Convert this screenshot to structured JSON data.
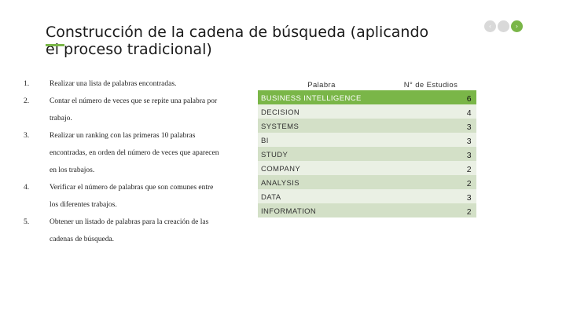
{
  "slide": {
    "title": "Construcción de la cadena de búsqueda (aplicando el proceso tradicional)"
  },
  "steps": [
    {
      "num": "1.",
      "text": "Realizar una lista de palabras encontradas."
    },
    {
      "num": "2.",
      "text": "Contar el número de veces que se repite una palabra por trabajo."
    },
    {
      "num": "3.",
      "text": "Realizar un ranking con las primeras 10 palabras encontradas, en orden del número de veces que aparecen en los trabajos."
    },
    {
      "num": "4.",
      "text": "Verificar el número de palabras que son comunes entre los diferentes trabajos."
    },
    {
      "num": "5.",
      "text": "Obtener un listado de palabras para la creación de las cadenas de búsqueda."
    }
  ],
  "table": {
    "headers": [
      "Palabra",
      "N° de Estudios"
    ],
    "rows": [
      {
        "word": "BUSINESS INTELLIGENCE",
        "count": "6"
      },
      {
        "word": "DECISION",
        "count": "4"
      },
      {
        "word": "SYSTEMS",
        "count": "3"
      },
      {
        "word": "BI",
        "count": "3"
      },
      {
        "word": "STUDY",
        "count": "3"
      },
      {
        "word": "COMPANY",
        "count": "2"
      },
      {
        "word": "ANALYSIS",
        "count": "2"
      },
      {
        "word": "DATA",
        "count": "3"
      },
      {
        "word": "INFORMATION",
        "count": "2"
      }
    ]
  },
  "colors": {
    "accent": "#7ab648",
    "row_light": "#eaf0e4",
    "row_dark": "#d3e0c7",
    "nav_inactive": "#d9d9d9"
  },
  "icons": [
    "prev-slide-icon",
    "home-icon",
    "next-slide-icon"
  ]
}
